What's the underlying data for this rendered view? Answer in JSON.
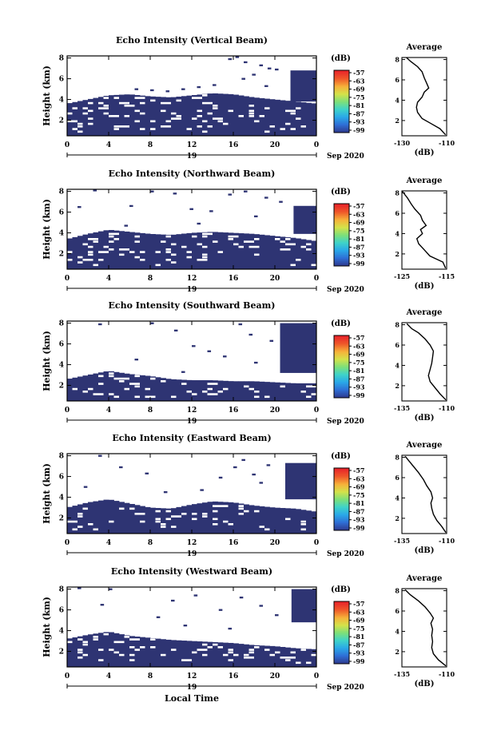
{
  "colors": {
    "echo": "#2e3473",
    "axis": "#000000",
    "colorbar": [
      "#2f3a8f",
      "#2f6fd6",
      "#2aa8e8",
      "#3fd3c9",
      "#7de07a",
      "#d4e24a",
      "#f6b23a",
      "#ef5a2a",
      "#e8262a"
    ]
  },
  "shared": {
    "xlabel": "Local Time",
    "xticks": [
      "0",
      "4",
      "8",
      "12",
      "16",
      "20",
      "0"
    ],
    "date_day": "19",
    "date_label": "Sep 2020",
    "ylabel": "Height (km)",
    "yticks": [
      "2",
      "4",
      "6",
      "8"
    ],
    "colorbar_unit": "(dB)",
    "colorbar_ticks": [
      "-57",
      "-63",
      "-69",
      "-75",
      "-81",
      "-87",
      "-93",
      "-99"
    ],
    "avg_title": "Average",
    "avg_xlabel": "(dB)",
    "avg_yticks": [
      "2",
      "4",
      "6",
      "8"
    ]
  },
  "chart_data": [
    {
      "type": "heatmap",
      "title": "Echo Intensity (Vertical Beam)",
      "xlim": [
        0,
        24
      ],
      "ylim": [
        0.5,
        8.2
      ],
      "echo_top_km": [
        [
          0,
          3.6
        ],
        [
          2,
          4.0
        ],
        [
          4,
          4.4
        ],
        [
          6,
          4.5
        ],
        [
          8,
          4.3
        ],
        [
          10,
          4.2
        ],
        [
          12,
          4.4
        ],
        [
          14,
          4.6
        ],
        [
          16,
          4.5
        ],
        [
          18,
          4.2
        ],
        [
          20,
          4.0
        ],
        [
          22,
          3.8
        ],
        [
          24,
          3.6
        ]
      ],
      "upper_layer": {
        "from_time": 21.5,
        "from_km": 3.8,
        "to_km": 6.8
      },
      "sparse_cells": [
        [
          15.5,
          7.8
        ],
        [
          16.2,
          8.0
        ],
        [
          17,
          7.5
        ],
        [
          18.5,
          7.2
        ],
        [
          19.3,
          6.9
        ],
        [
          17.8,
          6.3
        ],
        [
          20,
          6.8
        ],
        [
          16.8,
          5.9
        ],
        [
          19,
          5.2
        ],
        [
          14,
          5.3
        ],
        [
          12.5,
          5.1
        ],
        [
          11,
          4.9
        ],
        [
          9.5,
          4.7
        ],
        [
          8,
          4.8
        ],
        [
          6.5,
          4.9
        ]
      ],
      "average_profile": {
        "xlim": [
          -130,
          -110
        ],
        "xticks": [
          "-130",
          "-110"
        ],
        "ylim": [
          0.5,
          8.2
        ],
        "profile": [
          [
            -110.5,
            0.6
          ],
          [
            -113,
            1.2
          ],
          [
            -117,
            1.7
          ],
          [
            -121,
            2.2
          ],
          [
            -123,
            2.8
          ],
          [
            -123.5,
            3.3
          ],
          [
            -123,
            3.8
          ],
          [
            -121,
            4.3
          ],
          [
            -120,
            4.8
          ],
          [
            -118,
            5.2
          ],
          [
            -119,
            5.7
          ],
          [
            -120,
            6.2
          ],
          [
            -121,
            6.8
          ],
          [
            -123,
            7.3
          ],
          [
            -126,
            7.8
          ],
          [
            -128,
            8.2
          ]
        ]
      }
    },
    {
      "type": "heatmap",
      "title": "Echo Intensity (Northward Beam)",
      "xlim": [
        0,
        24
      ],
      "ylim": [
        0.5,
        8.2
      ],
      "echo_top_km": [
        [
          0,
          3.4
        ],
        [
          2,
          3.9
        ],
        [
          4,
          4.3
        ],
        [
          6,
          4.1
        ],
        [
          8,
          3.9
        ],
        [
          10,
          3.8
        ],
        [
          12,
          4.0
        ],
        [
          14,
          4.1
        ],
        [
          16,
          4.0
        ],
        [
          18,
          3.9
        ],
        [
          20,
          3.7
        ],
        [
          22,
          3.5
        ],
        [
          24,
          3.2
        ]
      ],
      "upper_layer": {
        "from_time": 21.8,
        "from_km": 3.9,
        "to_km": 6.6
      },
      "sparse_cells": [
        [
          2.5,
          8.0
        ],
        [
          8,
          7.9
        ],
        [
          10.2,
          7.7
        ],
        [
          15.5,
          7.6
        ],
        [
          17,
          7.9
        ],
        [
          19,
          7.3
        ],
        [
          20.4,
          6.9
        ],
        [
          1,
          6.4
        ],
        [
          6,
          6.5
        ],
        [
          11.8,
          6.2
        ],
        [
          13.7,
          6.0
        ],
        [
          18,
          5.5
        ],
        [
          12.5,
          4.8
        ],
        [
          5.5,
          4.6
        ]
      ],
      "average_profile": {
        "xlim": [
          -126,
          -114
        ],
        "xticks": [
          "-125",
          "-115"
        ],
        "ylim": [
          0.5,
          8.2
        ],
        "profile": [
          [
            -114.3,
            0.6
          ],
          [
            -115,
            1.2
          ],
          [
            -118.5,
            1.8
          ],
          [
            -120,
            2.4
          ],
          [
            -121.5,
            3.0
          ],
          [
            -122,
            3.5
          ],
          [
            -120.5,
            4.0
          ],
          [
            -121,
            4.4
          ],
          [
            -119.5,
            4.8
          ],
          [
            -120.5,
            5.3
          ],
          [
            -121,
            5.8
          ],
          [
            -122.5,
            6.4
          ],
          [
            -123.5,
            6.9
          ],
          [
            -124.5,
            7.5
          ],
          [
            -126,
            8.2
          ]
        ]
      }
    },
    {
      "type": "heatmap",
      "title": "Echo Intensity (Southward Beam)",
      "xlim": [
        0,
        24
      ],
      "ylim": [
        0.5,
        8.2
      ],
      "echo_top_km": [
        [
          0,
          2.6
        ],
        [
          2,
          3.0
        ],
        [
          4,
          3.4
        ],
        [
          6,
          3.1
        ],
        [
          8,
          2.9
        ],
        [
          10,
          2.6
        ],
        [
          12,
          2.5
        ],
        [
          14,
          2.5
        ],
        [
          16,
          2.4
        ],
        [
          18,
          2.4
        ],
        [
          20,
          2.3
        ],
        [
          22,
          2.2
        ],
        [
          24,
          2.2
        ]
      ],
      "upper_layer": {
        "from_time": 20.5,
        "from_km": 3.2,
        "to_km": 8.0
      },
      "sparse_cells": [
        [
          3,
          7.8
        ],
        [
          8,
          7.9
        ],
        [
          10.3,
          7.2
        ],
        [
          16.5,
          7.8
        ],
        [
          17.5,
          6.8
        ],
        [
          19.5,
          6.2
        ],
        [
          12,
          5.7
        ],
        [
          13.5,
          5.2
        ],
        [
          15,
          4.7
        ],
        [
          18,
          4.1
        ],
        [
          6.5,
          4.4
        ],
        [
          11,
          3.2
        ]
      ],
      "average_profile": {
        "xlim": [
          -137,
          -110
        ],
        "xticks": [
          "-135",
          "-110"
        ],
        "ylim": [
          0.5,
          8.2
        ],
        "profile": [
          [
            -110.5,
            0.6
          ],
          [
            -114,
            1.2
          ],
          [
            -117,
            1.8
          ],
          [
            -120,
            2.4
          ],
          [
            -121,
            3.0
          ],
          [
            -120,
            3.6
          ],
          [
            -119,
            4.2
          ],
          [
            -118.5,
            4.8
          ],
          [
            -118,
            5.4
          ],
          [
            -120,
            6.0
          ],
          [
            -123,
            6.6
          ],
          [
            -127,
            7.2
          ],
          [
            -131,
            7.6
          ],
          [
            -134,
            8.1
          ]
        ]
      }
    },
    {
      "type": "heatmap",
      "title": "Echo Intensity (Eastward Beam)",
      "xlim": [
        0,
        24
      ],
      "ylim": [
        0.5,
        8.2
      ],
      "echo_top_km": [
        [
          0,
          3.0
        ],
        [
          2,
          3.5
        ],
        [
          4,
          3.8
        ],
        [
          6,
          3.4
        ],
        [
          8,
          3.0
        ],
        [
          10,
          2.9
        ],
        [
          12,
          3.3
        ],
        [
          14,
          3.6
        ],
        [
          16,
          3.5
        ],
        [
          18,
          3.2
        ],
        [
          20,
          3.0
        ],
        [
          22,
          2.9
        ],
        [
          24,
          2.6
        ]
      ],
      "upper_layer": {
        "from_time": 21.0,
        "from_km": 3.8,
        "to_km": 7.3
      },
      "sparse_cells": [
        [
          3,
          7.9
        ],
        [
          5,
          6.8
        ],
        [
          7.5,
          6.2
        ],
        [
          16,
          6.8
        ],
        [
          16.8,
          7.5
        ],
        [
          17.8,
          6.1
        ],
        [
          19.2,
          7.0
        ],
        [
          14.6,
          5.8
        ],
        [
          18.5,
          5.3
        ],
        [
          12.8,
          4.6
        ],
        [
          9.3,
          4.4
        ],
        [
          1.6,
          4.9
        ]
      ],
      "average_profile": {
        "xlim": [
          -137,
          -110
        ],
        "xticks": [
          "-135",
          "-110"
        ],
        "ylim": [
          0.5,
          8.2
        ],
        "profile": [
          [
            -110.5,
            0.6
          ],
          [
            -113,
            1.2
          ],
          [
            -116,
            1.8
          ],
          [
            -118,
            2.4
          ],
          [
            -119,
            3.0
          ],
          [
            -119.5,
            3.5
          ],
          [
            -118.5,
            4.0
          ],
          [
            -119.5,
            4.6
          ],
          [
            -122,
            5.2
          ],
          [
            -124,
            5.8
          ],
          [
            -127,
            6.5
          ],
          [
            -130,
            7.1
          ],
          [
            -133,
            7.7
          ],
          [
            -135,
            8.1
          ]
        ]
      }
    },
    {
      "type": "heatmap",
      "title": "Echo Intensity (Westward Beam)",
      "xlim": [
        0,
        24
      ],
      "ylim": [
        0.5,
        8.2
      ],
      "echo_top_km": [
        [
          0,
          3.2
        ],
        [
          2,
          3.6
        ],
        [
          4,
          3.9
        ],
        [
          6,
          3.5
        ],
        [
          8,
          3.3
        ],
        [
          10,
          3.1
        ],
        [
          12,
          3.0
        ],
        [
          14,
          2.9
        ],
        [
          16,
          2.8
        ],
        [
          18,
          2.6
        ],
        [
          20,
          2.5
        ],
        [
          22,
          2.3
        ],
        [
          24,
          2.2
        ]
      ],
      "upper_layer": {
        "from_time": 21.6,
        "from_km": 4.8,
        "to_km": 8.0
      },
      "sparse_cells": [
        [
          1,
          8.0
        ],
        [
          4,
          7.9
        ],
        [
          10,
          6.8
        ],
        [
          12.2,
          7.3
        ],
        [
          14.6,
          5.9
        ],
        [
          16.6,
          7.1
        ],
        [
          18.5,
          6.3
        ],
        [
          20,
          5.4
        ],
        [
          3.2,
          6.4
        ],
        [
          8.6,
          5.2
        ],
        [
          11.2,
          4.4
        ],
        [
          15.5,
          4.1
        ]
      ],
      "average_profile": {
        "xlim": [
          -137,
          -110
        ],
        "xticks": [
          "-135",
          "-110"
        ],
        "ylim": [
          0.5,
          8.2
        ],
        "profile": [
          [
            -110.5,
            0.6
          ],
          [
            -115,
            1.2
          ],
          [
            -118,
            1.8
          ],
          [
            -119,
            2.4
          ],
          [
            -118.5,
            3.0
          ],
          [
            -119,
            3.6
          ],
          [
            -118.5,
            4.2
          ],
          [
            -119.5,
            4.8
          ],
          [
            -118,
            5.3
          ],
          [
            -120,
            5.8
          ],
          [
            -123,
            6.4
          ],
          [
            -127,
            7.0
          ],
          [
            -132,
            7.6
          ],
          [
            -135,
            8.1
          ]
        ]
      }
    }
  ]
}
